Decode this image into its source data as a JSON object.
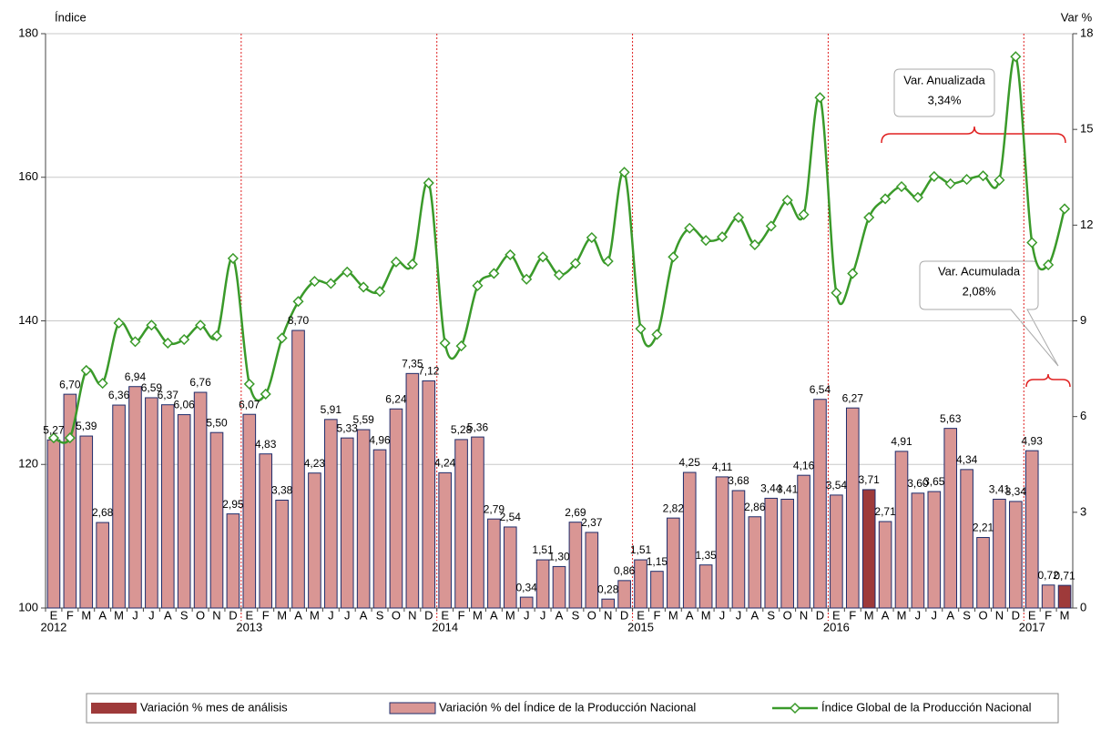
{
  "chart_data": {
    "type": "bar",
    "y_label": "Índice",
    "y2_label": "Var %",
    "categories": [
      "E",
      "F",
      "M",
      "A",
      "M",
      "J",
      "J",
      "A",
      "S",
      "O",
      "N",
      "D",
      "E",
      "F",
      "M",
      "A",
      "M",
      "J",
      "J",
      "A",
      "S",
      "O",
      "N",
      "D",
      "E",
      "F",
      "M",
      "A",
      "M",
      "J",
      "J",
      "A",
      "S",
      "O",
      "N",
      "D",
      "E",
      "F",
      "M",
      "A",
      "M",
      "J",
      "J",
      "A",
      "S",
      "O",
      "N",
      "D",
      "E",
      "F",
      "M",
      "A",
      "M",
      "J",
      "J",
      "A",
      "S",
      "O",
      "N",
      "D",
      "E",
      "F",
      "M"
    ],
    "years": [
      "2012",
      "2013",
      "2014",
      "2015",
      "2016",
      "2017"
    ],
    "ylim": [
      100,
      180
    ],
    "yticks": [
      100,
      120,
      140,
      160,
      180
    ],
    "y2lim": [
      0,
      18
    ],
    "y2ticks": [
      0,
      3,
      6,
      9,
      12,
      15,
      18
    ],
    "grid": true,
    "series": [
      {
        "name": "Variación % mes de análisis",
        "color": "#9e3a3a",
        "axis": "y2",
        "values": [
          null,
          null,
          null,
          null,
          null,
          null,
          null,
          null,
          null,
          null,
          null,
          null,
          null,
          null,
          null,
          null,
          null,
          null,
          null,
          null,
          null,
          null,
          null,
          null,
          null,
          null,
          null,
          null,
          null,
          null,
          null,
          null,
          null,
          null,
          null,
          null,
          null,
          null,
          null,
          null,
          null,
          null,
          null,
          null,
          null,
          null,
          null,
          null,
          null,
          null,
          3.71,
          null,
          null,
          null,
          null,
          null,
          null,
          null,
          null,
          null,
          null,
          null,
          0.71
        ],
        "value_labels": [
          null,
          null,
          null,
          null,
          null,
          null,
          null,
          null,
          null,
          null,
          null,
          null,
          null,
          null,
          null,
          null,
          null,
          null,
          null,
          null,
          null,
          null,
          null,
          null,
          null,
          null,
          null,
          null,
          null,
          null,
          null,
          null,
          null,
          null,
          null,
          null,
          null,
          null,
          null,
          null,
          null,
          null,
          null,
          null,
          null,
          null,
          null,
          null,
          null,
          null,
          "3,71",
          null,
          null,
          null,
          null,
          null,
          null,
          null,
          null,
          null,
          null,
          null,
          "0,71"
        ]
      },
      {
        "name": "Variación % del Índice de la Producción Nacional",
        "color": "#d99694",
        "border": "#1f2d6b",
        "axis": "y2",
        "values": [
          5.27,
          6.7,
          5.39,
          2.68,
          6.36,
          6.94,
          6.59,
          6.37,
          6.06,
          6.76,
          5.5,
          2.95,
          6.07,
          4.83,
          3.38,
          8.7,
          4.23,
          5.91,
          5.33,
          5.59,
          4.96,
          6.24,
          7.35,
          7.12,
          4.24,
          5.28,
          5.36,
          2.79,
          2.54,
          0.34,
          1.51,
          1.3,
          2.69,
          2.37,
          0.28,
          0.86,
          1.51,
          1.15,
          2.82,
          4.25,
          1.35,
          4.11,
          3.68,
          2.86,
          3.44,
          3.41,
          4.16,
          6.54,
          3.54,
          6.27,
          null,
          2.71,
          4.91,
          3.6,
          3.65,
          5.63,
          4.34,
          2.21,
          3.41,
          3.34,
          4.93,
          0.72,
          null
        ],
        "value_labels": [
          "5,27",
          "6,70",
          "5,39",
          "2,68",
          "6,36",
          "6,94",
          "6,59",
          "6,37",
          "6,06",
          "6,76",
          "5,50",
          "2,95",
          "6,07",
          "4,83",
          "3,38",
          "8,70",
          "4,23",
          "5,91",
          "5,33",
          "5,59",
          "4,96",
          "6,24",
          "7,35",
          "7,12",
          "4,24",
          "5,28",
          "5,36",
          "2,79",
          "2,54",
          "0,34",
          "1,51",
          "1,30",
          "2,69",
          "2,37",
          "0,28",
          "0,86",
          "1,51",
          "1,15",
          "2,82",
          "4,25",
          "1,35",
          "4,11",
          "3,68",
          "2,86",
          "3,44",
          "3,41",
          "4,16",
          "6,54",
          "3,54",
          "6,27",
          null,
          "2,71",
          "4,91",
          "3,60",
          "3,65",
          "5,63",
          "4,34",
          "2,21",
          "3,41",
          "3,34",
          "4,93",
          "0,72",
          null
        ]
      },
      {
        "name": "Índice Global de la Producción Nacional",
        "color": "#3a9a2a",
        "axis": "y",
        "type": "line",
        "values": [
          123.7,
          123.7,
          133.1,
          131.3,
          139.7,
          137.1,
          139.4,
          136.9,
          137.4,
          139.4,
          137.9,
          148.7,
          131.2,
          129.8,
          137.6,
          142.7,
          145.5,
          145.2,
          146.8,
          144.7,
          144.1,
          148.2,
          147.9,
          159.2,
          136.9,
          136.5,
          144.9,
          146.6,
          149.2,
          145.8,
          148.9,
          146.4,
          148.0,
          151.6,
          148.3,
          160.7,
          138.9,
          138.1,
          148.9,
          152.9,
          151.2,
          151.7,
          154.4,
          150.6,
          153.2,
          156.8,
          154.8,
          171.1,
          143.9,
          146.6,
          154.4,
          157.0,
          158.7,
          157.2,
          160.1,
          159.1,
          159.7,
          160.2,
          159.6,
          176.8,
          150.9,
          147.8,
          155.6
        ]
      }
    ],
    "annotations": [
      {
        "text": [
          "Var. Anualizada",
          "3,34%"
        ]
      },
      {
        "text": [
          "Var. Acumulada",
          "2,08%"
        ]
      }
    ]
  }
}
